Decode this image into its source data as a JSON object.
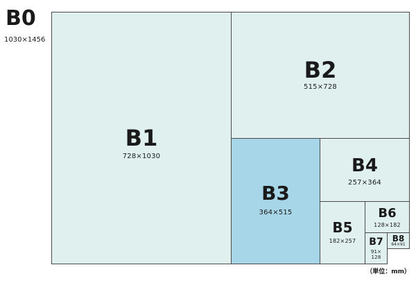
{
  "b0": {
    "name": "B0",
    "size": "1030×1456"
  },
  "b1": {
    "name": "B1",
    "size": "728×1030"
  },
  "b2": {
    "name": "B2",
    "size": "515×728"
  },
  "b3": {
    "name": "B3",
    "size": "364×515"
  },
  "b4": {
    "name": "B4",
    "size": "257×364"
  },
  "b5": {
    "name": "B5",
    "size": "182×257"
  },
  "b6": {
    "name": "B6",
    "size": "128×182"
  },
  "b7": {
    "name": "B7",
    "size_line1": "91×",
    "size_line2": "128"
  },
  "b8": {
    "name": "B8",
    "size": "64×91"
  },
  "unit_note": "（単位：mm）",
  "colors": {
    "panel_fill": "#dff0ee",
    "highlight_fill": "#a6d6e7",
    "border": "#4a4a4a"
  }
}
